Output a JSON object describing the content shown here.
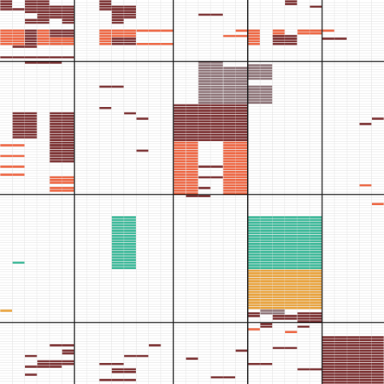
{
  "colors": {
    "background": "#ffffff",
    "grid_line": "#e2e2e2",
    "block_line": "#1a1a1a",
    "dark_red": "#7b3031",
    "orange": "#ee6541",
    "mauve": "#8e7478",
    "teal": "#3ab898",
    "amber": "#e9a23b"
  },
  "chart_data": {
    "type": "heatmap",
    "title": "",
    "xlabel": "",
    "ylabel": "",
    "grid": true,
    "n_rows": 144,
    "n_cols": 31,
    "row_block_sizes": [
      23,
      50,
      48,
      23
    ],
    "col_block_sizes": [
      6,
      8,
      6,
      6,
      5
    ],
    "categories": [
      "dark_red",
      "orange",
      "mauve",
      "teal",
      "amber"
    ],
    "cell_runs": [
      {
        "cat": "dark_red",
        "r0": 0,
        "r1": 2,
        "c0": 0,
        "c1": 0
      },
      {
        "cat": "dark_red",
        "r0": 3,
        "r1": 3,
        "c0": 0,
        "c1": 1
      },
      {
        "cat": "dark_red",
        "r0": 0,
        "r1": 1,
        "c0": 2,
        "c1": 3
      },
      {
        "cat": "dark_red",
        "r0": 2,
        "r1": 4,
        "c0": 2,
        "c1": 5
      },
      {
        "cat": "dark_red",
        "r0": 5,
        "r1": 6,
        "c0": 3,
        "c1": 5
      },
      {
        "cat": "dark_red",
        "r0": 7,
        "r1": 8,
        "c0": 2,
        "c1": 3
      },
      {
        "cat": "dark_red",
        "r0": 7,
        "r1": 8,
        "c0": 5,
        "c1": 5
      },
      {
        "cat": "orange",
        "r0": 11,
        "r1": 16,
        "c0": 0,
        "c1": 1
      },
      {
        "cat": "orange",
        "r0": 11,
        "r1": 16,
        "c0": 3,
        "c1": 3
      },
      {
        "cat": "dark_red",
        "r0": 11,
        "r1": 16,
        "c0": 2,
        "c1": 2
      },
      {
        "cat": "dark_red",
        "r0": 11,
        "r1": 16,
        "c0": 4,
        "c1": 5
      },
      {
        "cat": "orange",
        "r0": 14,
        "r1": 16,
        "c0": 4,
        "c1": 5
      },
      {
        "cat": "dark_red",
        "r0": 21,
        "r1": 21,
        "c0": 0,
        "c1": 5
      },
      {
        "cat": "dark_red",
        "r0": 0,
        "r1": 1,
        "c0": 8,
        "c1": 8
      },
      {
        "cat": "dark_red",
        "r0": 2,
        "r1": 3,
        "c0": 8,
        "c1": 10
      },
      {
        "cat": "dark_red",
        "r0": 3,
        "r1": 6,
        "c0": 9,
        "c1": 10
      },
      {
        "cat": "dark_red",
        "r0": 7,
        "r1": 8,
        "c0": 9,
        "c1": 9
      },
      {
        "cat": "orange",
        "r0": 11,
        "r1": 16,
        "c0": 8,
        "c1": 8
      },
      {
        "cat": "orange",
        "r0": 11,
        "r1": 13,
        "c0": 9,
        "c1": 10
      },
      {
        "cat": "dark_red",
        "r0": 14,
        "r1": 16,
        "c0": 9,
        "c1": 10
      },
      {
        "cat": "orange",
        "r0": 11,
        "r1": 11,
        "c0": 11,
        "c1": 13
      },
      {
        "cat": "orange",
        "r0": 16,
        "r1": 16,
        "c0": 11,
        "c1": 13
      },
      {
        "cat": "dark_red",
        "r0": 5,
        "r1": 5,
        "c0": 16,
        "c1": 17
      },
      {
        "cat": "orange",
        "r0": 11,
        "r1": 11,
        "c0": 19,
        "c1": 19
      },
      {
        "cat": "orange",
        "r0": 13,
        "r1": 13,
        "c0": 18,
        "c1": 19
      },
      {
        "cat": "orange",
        "r0": 11,
        "r1": 16,
        "c0": 20,
        "c1": 20
      },
      {
        "cat": "orange",
        "r0": 11,
        "r1": 13,
        "c0": 22,
        "c1": 22
      },
      {
        "cat": "dark_red",
        "r0": 13,
        "r1": 16,
        "c0": 22,
        "c1": 23
      },
      {
        "cat": "orange",
        "r0": 11,
        "r1": 12,
        "c0": 24,
        "c1": 25
      },
      {
        "cat": "dark_red",
        "r0": 0,
        "r1": 1,
        "c0": 23,
        "c1": 23
      },
      {
        "cat": "dark_red",
        "r0": 2,
        "r1": 2,
        "c0": 25,
        "c1": 25
      },
      {
        "cat": "orange",
        "r0": 11,
        "r1": 11,
        "c0": 26,
        "c1": 26
      },
      {
        "cat": "dark_red",
        "r0": 14,
        "r1": 14,
        "c0": 26,
        "c1": 27
      },
      {
        "cat": "dark_red",
        "r0": 17,
        "r1": 17,
        "c0": 1,
        "c1": 2
      },
      {
        "cat": "dark_red",
        "r0": 23,
        "r1": 23,
        "c0": 2,
        "c1": 4
      },
      {
        "cat": "dark_red",
        "r0": 42,
        "r1": 51,
        "c0": 1,
        "c1": 2
      },
      {
        "cat": "dark_red",
        "r0": 42,
        "r1": 60,
        "c0": 4,
        "c1": 5
      },
      {
        "cat": "orange",
        "r0": 54,
        "r1": 54,
        "c0": 0,
        "c1": 1
      },
      {
        "cat": "orange",
        "r0": 58,
        "r1": 58,
        "c0": 0,
        "c1": 1
      },
      {
        "cat": "orange",
        "r0": 62,
        "r1": 62,
        "c0": 0,
        "c1": 1
      },
      {
        "cat": "orange",
        "r0": 65,
        "r1": 65,
        "c0": 0,
        "c1": 1
      },
      {
        "cat": "orange",
        "r0": 66,
        "r1": 68,
        "c0": 4,
        "c1": 5
      },
      {
        "cat": "dark_red",
        "r0": 54,
        "r1": 54,
        "c0": 4,
        "c1": 5
      },
      {
        "cat": "dark_red",
        "r0": 57,
        "r1": 57,
        "c0": 4,
        "c1": 5
      },
      {
        "cat": "orange",
        "r0": 70,
        "r1": 71,
        "c0": 4,
        "c1": 5
      },
      {
        "cat": "dark_red",
        "r0": 32,
        "r1": 32,
        "c0": 8,
        "c1": 9
      },
      {
        "cat": "dark_red",
        "r0": 40,
        "r1": 40,
        "c0": 8,
        "c1": 8
      },
      {
        "cat": "dark_red",
        "r0": 42,
        "r1": 42,
        "c0": 10,
        "c1": 10
      },
      {
        "cat": "dark_red",
        "r0": 44,
        "r1": 44,
        "c0": 11,
        "c1": 11
      },
      {
        "cat": "dark_red",
        "r0": 56,
        "r1": 56,
        "c0": 11,
        "c1": 11
      },
      {
        "cat": "mauve",
        "r0": 23,
        "r1": 26,
        "c0": 16,
        "c1": 17
      },
      {
        "cat": "mauve",
        "r0": 25,
        "r1": 38,
        "c0": 18,
        "c1": 19
      },
      {
        "cat": "mauve",
        "r0": 24,
        "r1": 29,
        "c0": 20,
        "c1": 21
      },
      {
        "cat": "mauve",
        "r0": 27,
        "r1": 38,
        "c0": 16,
        "c1": 17
      },
      {
        "cat": "mauve",
        "r0": 32,
        "r1": 38,
        "c0": 20,
        "c1": 21
      },
      {
        "cat": "dark_red",
        "r0": 39,
        "r1": 52,
        "c0": 14,
        "c1": 19
      },
      {
        "cat": "orange",
        "r0": 53,
        "r1": 72,
        "c0": 14,
        "c1": 14
      },
      {
        "cat": "orange",
        "r0": 53,
        "r1": 72,
        "c0": 18,
        "c1": 19
      },
      {
        "cat": "orange",
        "r0": 53,
        "r1": 72,
        "c0": 15,
        "c1": 15
      },
      {
        "cat": "dark_red",
        "r0": 62,
        "r1": 62,
        "c0": 16,
        "c1": 17
      },
      {
        "cat": "dark_red",
        "r0": 66,
        "r1": 66,
        "c0": 16,
        "c1": 17
      },
      {
        "cat": "dark_red",
        "r0": 70,
        "r1": 70,
        "c0": 16,
        "c1": 16
      },
      {
        "cat": "dark_red",
        "r0": 73,
        "r1": 73,
        "c0": 15,
        "c1": 16
      },
      {
        "cat": "dark_red",
        "r0": 44,
        "r1": 44,
        "c0": 30,
        "c1": 30
      },
      {
        "cat": "dark_red",
        "r0": 46,
        "r1": 46,
        "c0": 29,
        "c1": 29
      },
      {
        "cat": "orange",
        "r0": 69,
        "r1": 69,
        "c0": 29,
        "c1": 29
      },
      {
        "cat": "orange",
        "r0": 76,
        "r1": 76,
        "c0": 30,
        "c1": 30
      },
      {
        "cat": "teal",
        "r0": 81,
        "r1": 100,
        "c0": 9,
        "c1": 10
      },
      {
        "cat": "teal",
        "r0": 98,
        "r1": 98,
        "c0": 1,
        "c1": 1
      },
      {
        "cat": "amber",
        "r0": 116,
        "r1": 116,
        "c0": 0,
        "c1": 0
      },
      {
        "cat": "teal",
        "r0": 81,
        "r1": 100,
        "c0": 20,
        "c1": 25
      },
      {
        "cat": "amber",
        "r0": 101,
        "r1": 115,
        "c0": 20,
        "c1": 25
      },
      {
        "cat": "mauve",
        "r0": 116,
        "r1": 117,
        "c0": 21,
        "c1": 22
      },
      {
        "cat": "dark_red",
        "r0": 118,
        "r1": 119,
        "c0": 22,
        "c1": 23
      },
      {
        "cat": "dark_red",
        "r0": 117,
        "r1": 120,
        "c0": 24,
        "c1": 25
      },
      {
        "cat": "dark_red",
        "r0": 117,
        "r1": 118,
        "c0": 20,
        "c1": 20
      },
      {
        "cat": "dark_red",
        "r0": 121,
        "r1": 122,
        "c0": 21,
        "c1": 21
      },
      {
        "cat": "orange",
        "r0": 123,
        "r1": 123,
        "c0": 20,
        "c1": 20
      },
      {
        "cat": "orange",
        "r0": 124,
        "r1": 124,
        "c0": 23,
        "c1": 23
      },
      {
        "cat": "dark_red",
        "r0": 122,
        "r1": 122,
        "c0": 24,
        "c1": 24
      },
      {
        "cat": "dark_red",
        "r0": 133,
        "r1": 133,
        "c0": 2,
        "c1": 2
      },
      {
        "cat": "dark_red",
        "r0": 135,
        "r1": 136,
        "c0": 3,
        "c1": 5
      },
      {
        "cat": "dark_red",
        "r0": 137,
        "r1": 137,
        "c0": 2,
        "c1": 4
      },
      {
        "cat": "dark_red",
        "r0": 140,
        "r1": 140,
        "c0": 2,
        "c1": 2
      },
      {
        "cat": "dark_red",
        "r0": 129,
        "r1": 129,
        "c0": 4,
        "c1": 5
      },
      {
        "cat": "dark_red",
        "r0": 131,
        "r1": 132,
        "c0": 5,
        "c1": 5
      },
      {
        "cat": "dark_red",
        "r0": 133,
        "r1": 133,
        "c0": 10,
        "c1": 11
      },
      {
        "cat": "dark_red",
        "r0": 136,
        "r1": 136,
        "c0": 8,
        "c1": 9
      },
      {
        "cat": "dark_red",
        "r0": 138,
        "r1": 139,
        "c0": 9,
        "c1": 10
      },
      {
        "cat": "dark_red",
        "r0": 142,
        "r1": 142,
        "c0": 8,
        "c1": 10
      },
      {
        "cat": "dark_red",
        "r0": 129,
        "r1": 129,
        "c0": 12,
        "c1": 12
      },
      {
        "cat": "dark_red",
        "r0": 134,
        "r1": 134,
        "c0": 15,
        "c1": 15
      },
      {
        "cat": "dark_red",
        "r0": 131,
        "r1": 131,
        "c0": 19,
        "c1": 19
      },
      {
        "cat": "dark_red",
        "r0": 141,
        "r1": 141,
        "c0": 17,
        "c1": 18
      },
      {
        "cat": "dark_red",
        "r0": 130,
        "r1": 130,
        "c0": 22,
        "c1": 23
      },
      {
        "cat": "dark_red",
        "r0": 136,
        "r1": 136,
        "c0": 20,
        "c1": 21
      },
      {
        "cat": "dark_red",
        "r0": 138,
        "r1": 138,
        "c0": 24,
        "c1": 25
      },
      {
        "cat": "dark_red",
        "r0": 126,
        "r1": 143,
        "c0": 26,
        "c1": 30
      }
    ]
  }
}
